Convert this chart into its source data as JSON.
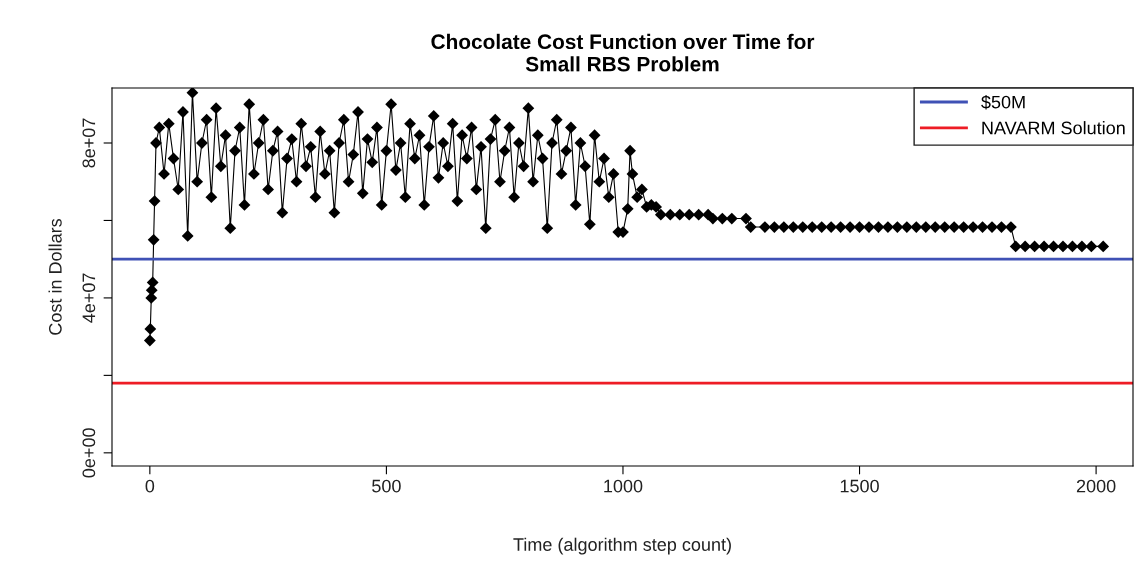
{
  "chart_data": {
    "type": "line",
    "title": "Chocolate Cost Function over Time for\nSmall RBS Problem",
    "xlabel": "Time (algorithm step count)",
    "ylabel": "Cost in Dollars",
    "xlim": [
      -80,
      2078
    ],
    "ylim": [
      -3400000,
      94200000
    ],
    "xticks": [
      0,
      500,
      1000,
      1500,
      2000
    ],
    "yticks": [
      {
        "value": 0,
        "label": "0e+00"
      },
      {
        "value": 20000000,
        "label": null
      },
      {
        "value": 40000000,
        "label": "4e+07"
      },
      {
        "value": 60000000,
        "label": null
      },
      {
        "value": 80000000,
        "label": "8e+07"
      }
    ],
    "marker": "diamond",
    "grid": false,
    "legend": "top right",
    "series": [
      {
        "color": "#000000",
        "x": [
          0,
          1,
          3,
          4,
          6,
          8,
          10,
          13,
          20,
          30,
          40,
          50,
          60,
          70,
          80,
          90,
          100,
          110,
          120,
          130,
          140,
          150,
          160,
          170,
          180,
          190,
          200,
          210,
          220,
          230,
          240,
          250,
          260,
          270,
          280,
          290,
          300,
          310,
          320,
          330,
          340,
          350,
          360,
          370,
          380,
          390,
          400,
          410,
          420,
          430,
          440,
          450,
          460,
          470,
          480,
          490,
          500,
          510,
          520,
          530,
          540,
          550,
          560,
          570,
          580,
          590,
          600,
          610,
          620,
          630,
          640,
          650,
          660,
          670,
          680,
          690,
          700,
          710,
          720,
          730,
          740,
          750,
          760,
          770,
          780,
          790,
          800,
          810,
          820,
          830,
          840,
          850,
          860,
          870,
          880,
          890,
          900,
          910,
          920,
          930,
          940,
          950,
          960,
          970,
          980,
          990,
          1000,
          1010,
          1015,
          1020,
          1030,
          1040,
          1050,
          1060,
          1070,
          1080,
          1100,
          1120,
          1140,
          1160,
          1180,
          1190,
          1210,
          1230,
          1260,
          1270,
          1300,
          1320,
          1340,
          1360,
          1380,
          1400,
          1420,
          1440,
          1460,
          1480,
          1500,
          1520,
          1540,
          1560,
          1580,
          1600,
          1620,
          1640,
          1660,
          1680,
          1700,
          1720,
          1740,
          1760,
          1780,
          1800,
          1820,
          1830,
          1850,
          1870,
          1890,
          1910,
          1930,
          1950,
          1970,
          1990,
          2015
        ],
        "values": [
          29000000.0,
          32000000.0,
          40000000.0,
          42000000.0,
          44000000.0,
          55000000.0,
          65000000.0,
          80000000.0,
          84000000.0,
          72000000.0,
          85000000.0,
          76000000.0,
          68000000.0,
          88000000.0,
          56000000.0,
          93000000.0,
          70000000.0,
          80000000.0,
          86000000.0,
          66000000.0,
          89000000.0,
          74000000.0,
          82000000.0,
          58000000.0,
          78000000.0,
          84000000.0,
          64000000.0,
          90000000.0,
          72000000.0,
          80000000.0,
          86000000.0,
          68000000.0,
          78000000.0,
          83000000.0,
          62000000.0,
          76000000.0,
          81000000.0,
          70000000.0,
          85000000.0,
          74000000.0,
          79000000.0,
          66000000.0,
          83000000.0,
          72000000.0,
          78000000.0,
          62000000.0,
          80000000.0,
          86000000.0,
          70000000.0,
          77000000.0,
          88000000.0,
          67000000.0,
          81000000.0,
          75000000.0,
          84000000.0,
          64000000.0,
          78000000.0,
          90000000.0,
          73000000.0,
          80000000.0,
          66000000.0,
          85000000.0,
          76000000.0,
          82000000.0,
          64000000.0,
          79000000.0,
          87000000.0,
          71000000.0,
          80000000.0,
          74000000.0,
          85000000.0,
          65000000.0,
          82000000.0,
          76000000.0,
          84000000.0,
          68000000.0,
          79000000.0,
          58000000.0,
          81000000.0,
          86000000.0,
          70000000.0,
          78000000.0,
          84000000.0,
          66000000.0,
          80000000.0,
          74000000.0,
          89000000.0,
          70000000.0,
          82000000.0,
          76000000.0,
          58000000.0,
          80000000.0,
          86000000.0,
          72000000.0,
          78000000.0,
          84000000.0,
          64000000.0,
          80000000.0,
          74000000.0,
          59000000.0,
          82000000.0,
          70000000.0,
          76000000.0,
          66000000.0,
          72000000.0,
          57000000.0,
          57000000.0,
          63000000.0,
          78000000.0,
          72000000.0,
          66000000.0,
          68000000.0,
          63500000.0,
          64000000.0,
          63500000.0,
          61500000.0,
          61500000.0,
          61500000.0,
          61500000.0,
          61500000.0,
          61500000.0,
          60500000.0,
          60500000.0,
          60500000.0,
          60500000.0,
          58300000.0,
          58300000.0,
          58300000.0,
          58300000.0,
          58300000.0,
          58300000.0,
          58300000.0,
          58300000.0,
          58300000.0,
          58300000.0,
          58300000.0,
          58300000.0,
          58300000.0,
          58300000.0,
          58300000.0,
          58300000.0,
          58300000.0,
          58300000.0,
          58300000.0,
          58300000.0,
          58300000.0,
          58300000.0,
          58300000.0,
          58300000.0,
          58300000.0,
          58300000.0,
          58300000.0,
          58300000.0,
          53300000.0,
          53300000.0,
          53300000.0,
          53300000.0,
          53300000.0,
          53300000.0,
          53300000.0,
          53300000.0,
          53300000.0,
          53300000.0
        ]
      }
    ],
    "ref_lines": [
      {
        "axis": "y",
        "value": 50000000,
        "label": "$50M",
        "color": "#3f51b5"
      },
      {
        "axis": "y",
        "value": 18000000,
        "label": "NAVARM Solution",
        "color": "#ee1c25"
      }
    ]
  }
}
